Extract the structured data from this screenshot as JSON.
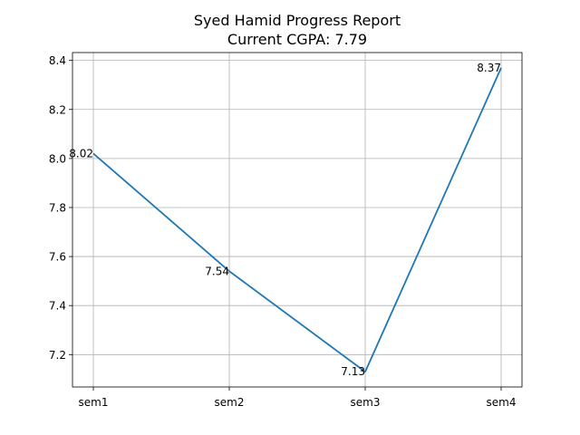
{
  "chart_data": {
    "type": "line",
    "title": "Syed Hamid Progress Report",
    "subtitle": "Current CGPA: 7.79",
    "categories": [
      "sem1",
      "sem2",
      "sem3",
      "sem4"
    ],
    "series": [
      {
        "values": [
          8.02,
          7.54,
          7.13,
          8.37
        ],
        "color": "#1f77b4"
      }
    ],
    "data_labels": [
      "8.02",
      "7.54",
      "7.13",
      "8.37"
    ],
    "yticks": [
      7.2,
      7.4,
      7.6,
      7.8,
      8.0,
      8.2,
      8.4
    ],
    "ytick_labels": [
      "7.2",
      "7.4",
      "7.6",
      "7.8",
      "8.0",
      "8.2",
      "8.4"
    ],
    "ylim": [
      7.068,
      8.432
    ],
    "xlabel": "",
    "ylabel": "",
    "grid": true,
    "legend": "none"
  }
}
